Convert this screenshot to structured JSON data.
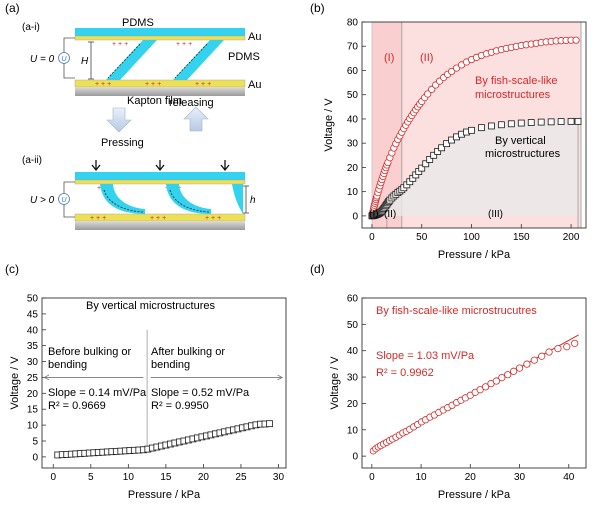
{
  "panel_labels": {
    "a": "(a)",
    "b": "(b)",
    "c": "(c)",
    "d": "(d)"
  },
  "schematic": {
    "label_ai": "(a-i)",
    "label_aii": "(a-ii)",
    "pdms_top": "PDMS",
    "pdms_mid": "PDMS",
    "au_top": "Au",
    "au_bottom": "Au",
    "kapton": "Kapton film",
    "u_zero": "U = 0",
    "u_pos": "U > 0",
    "u_symbol": "U",
    "h_big": "H",
    "h_small": "h",
    "pressing": "Pressing",
    "releasing": "releasing",
    "plus_row": "+ + +",
    "minus_row": "- - -"
  },
  "chart_data": [
    {
      "id": "b",
      "type": "scatter",
      "xlabel": "Pressure / kPa",
      "ylabel": "Voltage / V",
      "xlim": [
        -10,
        215
      ],
      "ylim": [
        -5,
        80
      ],
      "xticks": [
        0,
        50,
        100,
        150,
        200
      ],
      "yticks": [
        0,
        10,
        20,
        30,
        40,
        50,
        60,
        70,
        80
      ],
      "series": [
        {
          "name": "By fish-scale-like microstructures",
          "marker": "circle",
          "color": "#d42a2a",
          "x": [
            0,
            0.5,
            1,
            1.5,
            2,
            2.5,
            3,
            3.5,
            4,
            4.5,
            5,
            6,
            7,
            8,
            9,
            10,
            11,
            12,
            13,
            14,
            15,
            16,
            18,
            20,
            22,
            24,
            26,
            28,
            30,
            32,
            34,
            36,
            38,
            40,
            42,
            44,
            46,
            48,
            50,
            53,
            56,
            60,
            64,
            68,
            72,
            76,
            80,
            85,
            90,
            95,
            100,
            105,
            110,
            115,
            120,
            125,
            130,
            135,
            140,
            145,
            150,
            155,
            160,
            165,
            170,
            175,
            180,
            185,
            190,
            195,
            200,
            205
          ],
          "y": [
            0,
            0.9,
            1.8,
            2.7,
            3.6,
            4.4,
            5.2,
            6,
            6.8,
            7.5,
            8.2,
            9.6,
            11,
            12.4,
            13.7,
            15,
            16.3,
            17.5,
            18.7,
            19.9,
            21,
            22,
            24,
            26,
            28,
            29.8,
            31.5,
            33,
            34.5,
            36,
            37.4,
            38.8,
            40.1,
            41.4,
            42.6,
            43.8,
            45,
            46.1,
            47.2,
            48.8,
            50.3,
            52.2,
            54,
            55.6,
            57.1,
            58.4,
            59.6,
            61,
            62.3,
            63.5,
            64.5,
            65.4,
            66.2,
            66.9,
            67.5,
            68.1,
            68.6,
            69.1,
            69.5,
            69.9,
            70.3,
            70.6,
            70.9,
            71.2,
            71.5,
            71.8,
            72,
            72.2,
            72.3,
            72.4,
            72.5,
            72.5
          ]
        },
        {
          "name": "By vertical microstructures",
          "marker": "square",
          "color": "#1a1a1a",
          "x": [
            0,
            1,
            2,
            3,
            4,
            5,
            6,
            7,
            8,
            9,
            10,
            11,
            12,
            13,
            14,
            15,
            16,
            17,
            18,
            20,
            22,
            24,
            26,
            28,
            30,
            32,
            35,
            38,
            41,
            44,
            47,
            50,
            54,
            58,
            62,
            66,
            70,
            75,
            80,
            85,
            90,
            95,
            100,
            110,
            120,
            130,
            140,
            150,
            160,
            170,
            180,
            190,
            200,
            207
          ],
          "y": [
            0,
            0.1,
            0.2,
            0.3,
            0.45,
            0.6,
            0.8,
            1,
            1.3,
            1.6,
            2,
            2.5,
            3,
            3.6,
            4.2,
            4.8,
            5.4,
            6,
            6.5,
            7.4,
            8.2,
            8.9,
            9.6,
            10.2,
            10.8,
            11.6,
            12.8,
            14.1,
            15.5,
            16.9,
            18.3,
            19.7,
            21.5,
            23.3,
            25,
            26.6,
            28.1,
            29.8,
            31.3,
            32.6,
            33.7,
            34.6,
            35.3,
            36.4,
            37.1,
            37.6,
            38,
            38.3,
            38.5,
            38.7,
            38.8,
            38.9,
            39,
            39
          ]
        }
      ],
      "regions": {
        "pink_from": -10,
        "pink_to": 210,
        "dividers": [
          30,
          210
        ]
      },
      "region_labels_red": [
        "(I)",
        "(II)"
      ],
      "region_labels_black": [
        "(I)",
        "(II)",
        "(III)"
      ],
      "annotations": {
        "fish_line1": "By fish-scale-like",
        "fish_line2": "microstructures",
        "vert_line1": "By vertical",
        "vert_line2": "microstructures"
      }
    },
    {
      "id": "c",
      "type": "scatter",
      "xlabel": "Pressure / kPa",
      "ylabel": "Voltage / V",
      "xlim": [
        -1.5,
        31
      ],
      "ylim": [
        -3.5,
        50
      ],
      "xticks": [
        0,
        5,
        10,
        15,
        20,
        25,
        30
      ],
      "yticks": [
        0,
        5,
        10,
        15,
        20,
        25,
        30,
        35,
        40,
        45,
        50
      ],
      "divider_x": 12.5,
      "series": [
        {
          "name": "By vertical microstructures",
          "marker": "square",
          "color": "#1a1a1a",
          "x": [
            0.6,
            1.2,
            1.8,
            2.4,
            3,
            3.6,
            4.2,
            4.8,
            5.4,
            6,
            6.6,
            7.2,
            7.8,
            8.4,
            9,
            9.6,
            10.2,
            10.8,
            11.4,
            12,
            12.6,
            13.2,
            13.8,
            14.4,
            15,
            15.6,
            16.2,
            16.8,
            17.4,
            18,
            18.6,
            19.2,
            19.8,
            20.4,
            21,
            21.6,
            22.2,
            22.8,
            23.4,
            24,
            24.6,
            25.2,
            25.8,
            26.4,
            27,
            27.6,
            28.2,
            28.8
          ],
          "y": [
            0.6,
            0.7,
            0.78,
            0.86,
            0.95,
            1.04,
            1.13,
            1.22,
            1.3,
            1.39,
            1.47,
            1.56,
            1.64,
            1.73,
            1.81,
            1.9,
            1.99,
            2.07,
            2.15,
            2.24,
            2.45,
            2.78,
            3.1,
            3.42,
            3.73,
            4.05,
            4.37,
            4.7,
            5,
            5.33,
            5.65,
            5.97,
            6.3,
            6.6,
            6.92,
            7.25,
            7.55,
            7.88,
            8.2,
            8.5,
            8.82,
            9.15,
            9.45,
            9.78,
            10.08,
            10.3,
            10.35,
            10.45
          ]
        }
      ],
      "annotations": {
        "title": "By vertical microstructures",
        "left_line1": "Before bulking or",
        "left_line2": "bending",
        "left_slope": "Slope = 0.14 mV/Pa",
        "left_r2": "R² = 0.9669",
        "right_line1": "After bulking or",
        "right_line2": "bending",
        "right_slope": "Slope = 0.52 mV/Pa",
        "right_r2": "R² = 0.9950"
      }
    },
    {
      "id": "d",
      "type": "scatter",
      "xlabel": "Pressure / kPa",
      "ylabel": "Voltage / V",
      "xlim": [
        -2,
        43.5
      ],
      "ylim": [
        -4.5,
        60
      ],
      "xticks": [
        0,
        10,
        20,
        30,
        40
      ],
      "yticks": [
        0,
        10,
        20,
        30,
        40,
        50,
        60
      ],
      "fit": {
        "x0": 0,
        "y0": 2.7,
        "x1": 42,
        "y1": 46
      },
      "series": [
        {
          "name": "By fish-scale-like microstrucutres",
          "marker": "circle",
          "color": "#d42a2a",
          "x": [
            0.3,
            0.8,
            1.3,
            1.8,
            2.4,
            3,
            3.6,
            4.2,
            4.9,
            5.6,
            6.3,
            7,
            7.7,
            8.5,
            9.3,
            10.1,
            10.9,
            11.8,
            12.7,
            13.6,
            14.5,
            15.4,
            16.3,
            17.2,
            18.1,
            19,
            20,
            21,
            22,
            23.1,
            24.2,
            25.3,
            26.4,
            27.6,
            28.8,
            30,
            31.5,
            33,
            34.5,
            36,
            37.8,
            39.6,
            41.2
          ],
          "y": [
            2,
            2.8,
            3.5,
            4,
            4.6,
            5.2,
            5.9,
            6.5,
            7.2,
            8,
            8.8,
            9.4,
            10.2,
            11.1,
            12,
            13,
            13.8,
            14.8,
            15.6,
            16.6,
            17.5,
            18.4,
            19.3,
            20.3,
            21.2,
            22.1,
            23.1,
            24.2,
            25.2,
            26.3,
            27.5,
            28.5,
            29.8,
            30.9,
            32.2,
            33.4,
            34.9,
            36.4,
            37.9,
            39.5,
            40.8,
            41.5,
            42.8
          ]
        }
      ],
      "annotations": {
        "title": "By fish-scale-like microstrucutres",
        "slope": "Slope = 1.03 mV/Pa",
        "r2": "R² = 0.9962"
      }
    }
  ]
}
